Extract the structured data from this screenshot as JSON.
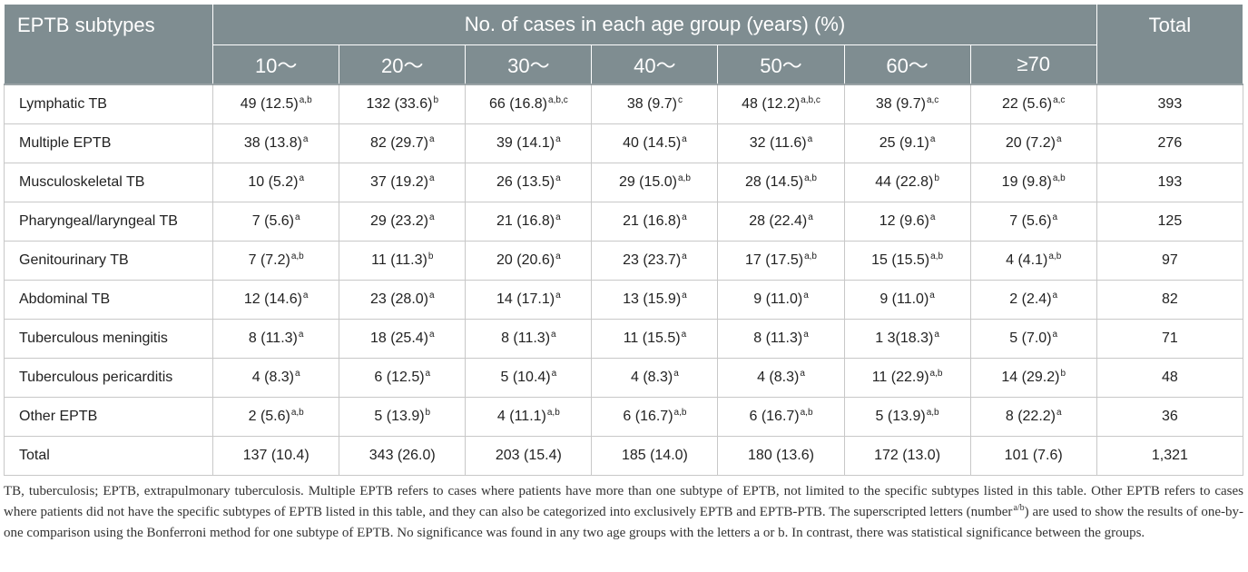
{
  "table": {
    "header": {
      "subtype_label": "EPTB subtypes",
      "group_label": "No. of cases in each age group (years) (%)",
      "total_label": "Total",
      "age_groups": [
        "10～",
        "20～",
        "30～",
        "40～",
        "50～",
        "60～",
        "≥70"
      ]
    },
    "rows": [
      {
        "label": "Lymphatic TB",
        "cells": [
          {
            "v": "49 (12.5)",
            "s": "a,b"
          },
          {
            "v": "132 (33.6)",
            "s": "b"
          },
          {
            "v": "66 (16.8)",
            "s": "a,b,c"
          },
          {
            "v": "38 (9.7)",
            "s": "c"
          },
          {
            "v": "48 (12.2)",
            "s": "a,b,c"
          },
          {
            "v": "38 (9.7)",
            "s": "a,c"
          },
          {
            "v": "22 (5.6)",
            "s": "a,c"
          }
        ],
        "total": "393"
      },
      {
        "label": "Multiple EPTB",
        "cells": [
          {
            "v": "38 (13.8)",
            "s": "a"
          },
          {
            "v": "82 (29.7)",
            "s": "a"
          },
          {
            "v": "39 (14.1)",
            "s": "a"
          },
          {
            "v": "40 (14.5)",
            "s": "a"
          },
          {
            "v": "32 (11.6)",
            "s": "a"
          },
          {
            "v": "25 (9.1)",
            "s": "a"
          },
          {
            "v": "20 (7.2)",
            "s": "a"
          }
        ],
        "total": "276"
      },
      {
        "label": "Musculoskeletal TB",
        "cells": [
          {
            "v": "10 (5.2)",
            "s": "a"
          },
          {
            "v": "37 (19.2)",
            "s": "a"
          },
          {
            "v": "26 (13.5)",
            "s": "a"
          },
          {
            "v": "29 (15.0)",
            "s": "a,b"
          },
          {
            "v": "28 (14.5)",
            "s": "a,b"
          },
          {
            "v": "44 (22.8)",
            "s": "b"
          },
          {
            "v": "19 (9.8)",
            "s": "a,b"
          }
        ],
        "total": "193"
      },
      {
        "label": "Pharyngeal/laryngeal TB",
        "cells": [
          {
            "v": "7 (5.6)",
            "s": "a"
          },
          {
            "v": "29 (23.2)",
            "s": "a"
          },
          {
            "v": "21 (16.8)",
            "s": "a"
          },
          {
            "v": "21 (16.8)",
            "s": "a"
          },
          {
            "v": "28 (22.4)",
            "s": "a"
          },
          {
            "v": "12 (9.6)",
            "s": "a"
          },
          {
            "v": "7 (5.6)",
            "s": "a"
          }
        ],
        "total": "125"
      },
      {
        "label": "Genitourinary TB",
        "cells": [
          {
            "v": "7 (7.2)",
            "s": "a,b"
          },
          {
            "v": "11 (11.3)",
            "s": "b"
          },
          {
            "v": "20 (20.6)",
            "s": "a"
          },
          {
            "v": "23 (23.7)",
            "s": "a"
          },
          {
            "v": "17 (17.5)",
            "s": "a,b"
          },
          {
            "v": "15 (15.5)",
            "s": "a,b"
          },
          {
            "v": "4 (4.1)",
            "s": "a,b"
          }
        ],
        "total": "97"
      },
      {
        "label": "Abdominal TB",
        "cells": [
          {
            "v": "12 (14.6)",
            "s": "a"
          },
          {
            "v": "23 (28.0)",
            "s": "a"
          },
          {
            "v": "14 (17.1)",
            "s": "a"
          },
          {
            "v": "13 (15.9)",
            "s": "a"
          },
          {
            "v": "9 (11.0)",
            "s": "a"
          },
          {
            "v": "9 (11.0)",
            "s": "a"
          },
          {
            "v": "2 (2.4)",
            "s": "a"
          }
        ],
        "total": "82"
      },
      {
        "label": "Tuberculous meningitis",
        "cells": [
          {
            "v": "8 (11.3)",
            "s": "a"
          },
          {
            "v": "18 (25.4)",
            "s": "a"
          },
          {
            "v": "8 (11.3)",
            "s": "a"
          },
          {
            "v": "11 (15.5)",
            "s": "a"
          },
          {
            "v": "8 (11.3)",
            "s": "a"
          },
          {
            "v": "1 3(18.3)",
            "s": "a"
          },
          {
            "v": "5 (7.0)",
            "s": "a"
          }
        ],
        "total": "71"
      },
      {
        "label": "Tuberculous pericarditis",
        "cells": [
          {
            "v": "4 (8.3)",
            "s": "a"
          },
          {
            "v": "6 (12.5)",
            "s": "a"
          },
          {
            "v": "5 (10.4)",
            "s": "a"
          },
          {
            "v": "4 (8.3)",
            "s": "a"
          },
          {
            "v": "4 (8.3)",
            "s": "a"
          },
          {
            "v": "11 (22.9)",
            "s": "a,b"
          },
          {
            "v": "14 (29.2)",
            "s": "b"
          }
        ],
        "total": "48"
      },
      {
        "label": "Other EPTB",
        "cells": [
          {
            "v": "2 (5.6)",
            "s": "a,b"
          },
          {
            "v": "5 (13.9)",
            "s": "b"
          },
          {
            "v": "4 (11.1)",
            "s": "a,b"
          },
          {
            "v": "6 (16.7)",
            "s": "a,b"
          },
          {
            "v": "6 (16.7)",
            "s": "a,b"
          },
          {
            "v": "5 (13.9)",
            "s": "a,b"
          },
          {
            "v": "8 (22.2)",
            "s": "a"
          }
        ],
        "total": "36"
      },
      {
        "label": "Total",
        "cells": [
          {
            "v": "137 (10.4)",
            "s": ""
          },
          {
            "v": "343 (26.0)",
            "s": ""
          },
          {
            "v": "203 (15.4)",
            "s": ""
          },
          {
            "v": "185 (14.0)",
            "s": ""
          },
          {
            "v": "180 (13.6)",
            "s": ""
          },
          {
            "v": "172 (13.0)",
            "s": ""
          },
          {
            "v": "101 (7.6)",
            "s": ""
          }
        ],
        "total": "1,321"
      }
    ]
  },
  "footnote": {
    "before_sup": "TB, tuberculosis; EPTB, extrapulmonary tuberculosis. Multiple EPTB refers to cases where patients have more than one subtype of EPTB, not limited to the specific subtypes listed in this table. Other EPTB refers to cases where patients did not have the specific subtypes of EPTB listed in this table, and they can also be categorized into exclusively EPTB and EPTB-PTB. The superscripted letters (number",
    "sup": "a/b",
    "after_sup": ") are used to show the results of one-by-one comparison using the Bonferroni method for one subtype of EPTB. No significance was found in any two age groups with the letters a or b. In contrast, there was statistical significance between the groups."
  }
}
